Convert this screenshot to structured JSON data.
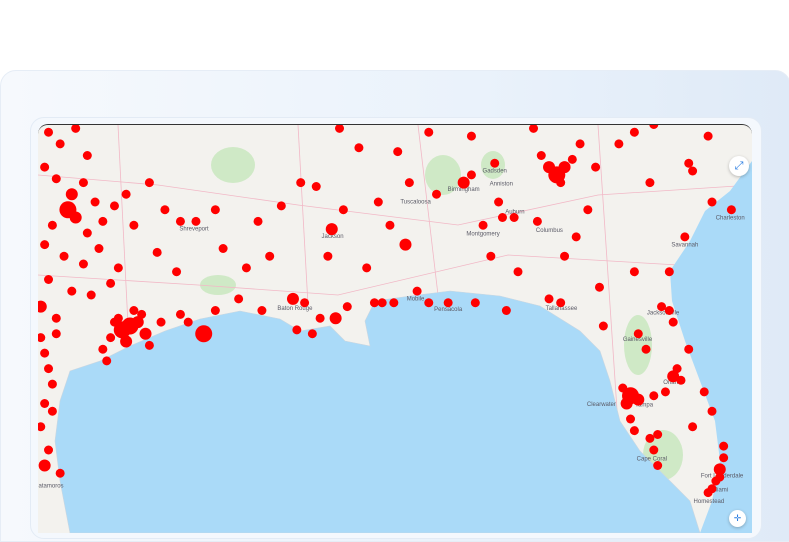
{
  "map": {
    "colors": {
      "marker": "#ff0000",
      "water": "#aadaf8",
      "land": "#f3f2ee",
      "park": "#cfe9c6",
      "road": "#f2b8c6"
    },
    "controls": {
      "fullscreen_icon": "expand-arrows-icon",
      "locate_icon": "crosshair-icon"
    },
    "cities": [
      {
        "name": "Shreveport",
        "lon": -93.75,
        "lat": 32.5
      },
      {
        "name": "Jackson",
        "lon": -90.18,
        "lat": 32.3
      },
      {
        "name": "Baton Rouge",
        "lon": -91.15,
        "lat": 30.45
      },
      {
        "name": "Tuscaloosa",
        "lon": -87.57,
        "lat": 33.2
      },
      {
        "name": "Birmingham",
        "lon": -86.8,
        "lat": 33.52
      },
      {
        "name": "Gadsden",
        "lon": -86.0,
        "lat": 34.0
      },
      {
        "name": "Anniston",
        "lon": -85.83,
        "lat": 33.66
      },
      {
        "name": "Montgomery",
        "lon": -86.3,
        "lat": 32.37
      },
      {
        "name": "Auburn",
        "lon": -85.48,
        "lat": 32.6
      },
      {
        "name": "Columbus",
        "lon": -84.99,
        "lat": 32.46
      },
      {
        "name": "Mobile",
        "lon": -88.04,
        "lat": 30.69
      },
      {
        "name": "Pensacola",
        "lon": -87.2,
        "lat": 30.42
      },
      {
        "name": "Tallahassee",
        "lon": -84.28,
        "lat": 30.44
      },
      {
        "name": "Jacksonville",
        "lon": -81.66,
        "lat": 30.33
      },
      {
        "name": "Gainesville",
        "lon": -82.32,
        "lat": 29.65
      },
      {
        "name": "Orlando",
        "lon": -81.38,
        "lat": 28.54
      },
      {
        "name": "Clearwater",
        "lon": -82.8,
        "lat": 27.97
      },
      {
        "name": "Tampa",
        "lon": -82.46,
        "lat": 27.95
      },
      {
        "name": "Cape Coral",
        "lon": -81.95,
        "lat": 26.56
      },
      {
        "name": "Fort Lauderdale",
        "lon": -80.14,
        "lat": 26.12
      },
      {
        "name": "Miami",
        "lon": -80.19,
        "lat": 25.76
      },
      {
        "name": "Homestead",
        "lon": -80.48,
        "lat": 25.47
      },
      {
        "name": "Savannah",
        "lon": -81.1,
        "lat": 32.08
      },
      {
        "name": "Charleston",
        "lon": -79.93,
        "lat": 32.78
      },
      {
        "name": "Matamoros",
        "lon": -97.5,
        "lat": 25.87
      }
    ],
    "markers": [
      [
        -97.5,
        34.8
      ],
      [
        -97.2,
        34.5
      ],
      [
        -96.8,
        34.9
      ],
      [
        -96.5,
        34.2
      ],
      [
        -97.6,
        33.9
      ],
      [
        -97.3,
        33.6
      ],
      [
        -96.9,
        33.2,
        "m"
      ],
      [
        -96.6,
        33.5
      ],
      [
        -96.3,
        33.0
      ],
      [
        -97.0,
        32.8,
        "l"
      ],
      [
        -96.8,
        32.6,
        "m"
      ],
      [
        -97.4,
        32.4
      ],
      [
        -96.5,
        32.2
      ],
      [
        -96.1,
        32.5
      ],
      [
        -95.8,
        32.9
      ],
      [
        -95.5,
        33.2
      ],
      [
        -95.3,
        32.4
      ],
      [
        -97.6,
        31.9
      ],
      [
        -97.1,
        31.6
      ],
      [
        -96.6,
        31.4
      ],
      [
        -96.2,
        31.8
      ],
      [
        -95.7,
        31.3
      ],
      [
        -97.5,
        31.0
      ],
      [
        -96.9,
        30.7
      ],
      [
        -97.7,
        30.3,
        "m"
      ],
      [
        -97.3,
        30.0
      ],
      [
        -96.4,
        30.6
      ],
      [
        -95.9,
        30.9
      ],
      [
        -94.9,
        33.5
      ],
      [
        -94.5,
        32.8
      ],
      [
        -94.1,
        32.5
      ],
      [
        -94.7,
        31.7
      ],
      [
        -94.2,
        31.2
      ],
      [
        -95.4,
        29.8,
        "l"
      ],
      [
        -95.6,
        29.7,
        "l"
      ],
      [
        -95.2,
        29.9,
        "m"
      ],
      [
        -95.0,
        29.6,
        "m"
      ],
      [
        -95.7,
        30.0
      ],
      [
        -95.3,
        30.2
      ],
      [
        -95.9,
        29.5
      ],
      [
        -95.5,
        29.4,
        "m"
      ],
      [
        -94.9,
        29.3
      ],
      [
        -96.1,
        29.2
      ],
      [
        -95.8,
        29.9
      ],
      [
        -95.1,
        30.1
      ],
      [
        -94.6,
        29.9
      ],
      [
        -94.1,
        30.1
      ],
      [
        -93.9,
        29.9
      ],
      [
        -96.0,
        28.9
      ],
      [
        -97.6,
        29.1
      ],
      [
        -97.5,
        28.7
      ],
      [
        -97.4,
        28.3
      ],
      [
        -97.6,
        27.8
      ],
      [
        -97.4,
        27.6
      ],
      [
        -97.7,
        27.2
      ],
      [
        -97.5,
        26.6
      ],
      [
        -97.6,
        26.2,
        "m"
      ],
      [
        -97.2,
        26.0
      ],
      [
        -97.7,
        29.5
      ],
      [
        -97.3,
        29.6
      ],
      [
        -93.7,
        32.5
      ],
      [
        -93.2,
        32.8
      ],
      [
        -92.1,
        32.5
      ],
      [
        -91.5,
        32.9
      ],
      [
        -92.4,
        31.3
      ],
      [
        -93.2,
        30.2
      ],
      [
        -92.0,
        30.2
      ],
      [
        -91.2,
        30.5,
        "m"
      ],
      [
        -90.9,
        30.4
      ],
      [
        -90.5,
        30.0
      ],
      [
        -90.1,
        30.0,
        "m"
      ],
      [
        -89.8,
        30.3
      ],
      [
        -92.6,
        30.5
      ],
      [
        -91.1,
        29.7
      ],
      [
        -90.7,
        29.6
      ],
      [
        -93.0,
        31.8
      ],
      [
        -91.8,
        31.6
      ],
      [
        -93.5,
        29.6,
        "l"
      ],
      [
        -90.2,
        32.3,
        "m"
      ],
      [
        -89.9,
        32.8
      ],
      [
        -90.6,
        33.4
      ],
      [
        -89.3,
        31.3
      ],
      [
        -88.7,
        32.4
      ],
      [
        -88.9,
        30.4
      ],
      [
        -88.6,
        30.4
      ],
      [
        -89.1,
        30.4
      ],
      [
        -88.5,
        34.3
      ],
      [
        -89.5,
        34.4
      ],
      [
        -90.0,
        34.9
      ],
      [
        -91.0,
        33.5
      ],
      [
        -88.2,
        33.5
      ],
      [
        -89.0,
        33.0
      ],
      [
        -90.3,
        31.6
      ],
      [
        -88.0,
        30.7
      ],
      [
        -87.7,
        30.4
      ],
      [
        -86.8,
        33.5,
        "m"
      ],
      [
        -86.6,
        33.7
      ],
      [
        -87.5,
        33.2
      ],
      [
        -86.3,
        32.4
      ],
      [
        -85.8,
        32.6
      ],
      [
        -85.5,
        32.6
      ],
      [
        -86.0,
        34.0
      ],
      [
        -86.6,
        34.7
      ],
      [
        -85.4,
        31.2
      ],
      [
        -87.2,
        30.4
      ],
      [
        -86.5,
        30.4
      ],
      [
        -85.7,
        30.2
      ],
      [
        -85.9,
        33.0
      ],
      [
        -87.7,
        34.8
      ],
      [
        -86.1,
        31.6
      ],
      [
        -88.3,
        31.9,
        "m"
      ],
      [
        -84.4,
        33.7,
        "l"
      ],
      [
        -84.6,
        33.9,
        "m"
      ],
      [
        -84.2,
        33.9,
        "m"
      ],
      [
        -84.3,
        33.5
      ],
      [
        -84.0,
        34.1
      ],
      [
        -83.4,
        33.9
      ],
      [
        -84.8,
        34.2
      ],
      [
        -85.0,
        34.9
      ],
      [
        -83.8,
        34.5
      ],
      [
        -82.0,
        33.5
      ],
      [
        -81.1,
        32.1
      ],
      [
        -81.5,
        31.2
      ],
      [
        -83.6,
        32.8
      ],
      [
        -84.9,
        32.5
      ],
      [
        -84.2,
        31.6
      ],
      [
        -82.4,
        31.2
      ],
      [
        -83.3,
        30.8
      ],
      [
        -82.8,
        34.5
      ],
      [
        -82.4,
        34.8
      ],
      [
        -81.9,
        35.0
      ],
      [
        -81.0,
        34.0
      ],
      [
        -80.9,
        33.8
      ],
      [
        -80.4,
        33.0
      ],
      [
        -79.9,
        32.8
      ],
      [
        -80.5,
        34.7
      ],
      [
        -84.6,
        30.5
      ],
      [
        -84.3,
        30.4
      ],
      [
        -83.9,
        32.1
      ],
      [
        -82.5,
        28.0,
        "l"
      ],
      [
        -82.6,
        27.8,
        "m"
      ],
      [
        -82.7,
        28.2
      ],
      [
        -82.3,
        27.9,
        "m"
      ],
      [
        -82.5,
        27.4
      ],
      [
        -82.4,
        27.1
      ],
      [
        -81.4,
        28.5,
        "m"
      ],
      [
        -81.3,
        28.7
      ],
      [
        -81.2,
        28.4
      ],
      [
        -81.6,
        28.1
      ],
      [
        -81.9,
        28.0
      ],
      [
        -81.0,
        29.2
      ],
      [
        -81.7,
        30.3
      ],
      [
        -81.5,
        30.2
      ],
      [
        -81.4,
        29.9
      ],
      [
        -82.3,
        29.6
      ],
      [
        -82.1,
        29.2
      ],
      [
        -80.6,
        28.1
      ],
      [
        -80.4,
        27.6
      ],
      [
        -81.9,
        26.6
      ],
      [
        -81.8,
        26.2
      ],
      [
        -80.1,
        26.7
      ],
      [
        -80.1,
        26.4
      ],
      [
        -80.2,
        26.1,
        "m"
      ],
      [
        -80.3,
        25.8
      ],
      [
        -80.4,
        25.6
      ],
      [
        -80.5,
        25.5
      ],
      [
        -80.2,
        25.9
      ],
      [
        -80.9,
        27.2
      ],
      [
        -81.8,
        27.0
      ],
      [
        -82.0,
        26.9
      ],
      [
        -83.2,
        29.8
      ]
    ]
  }
}
